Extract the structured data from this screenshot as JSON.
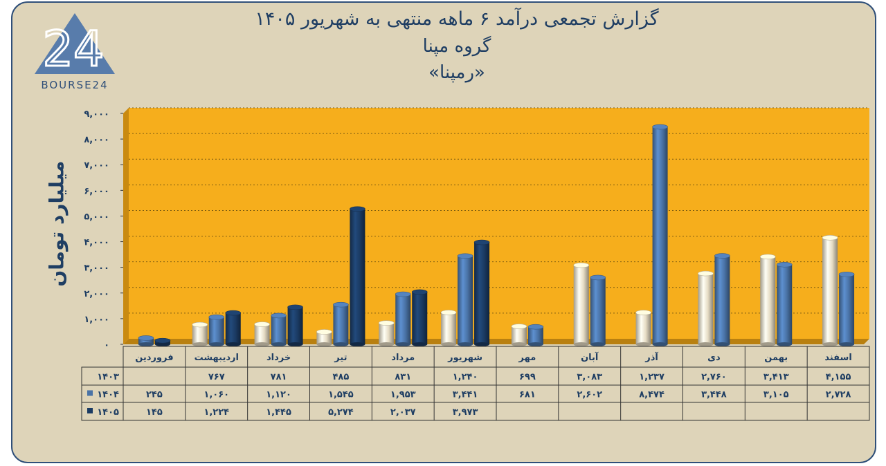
{
  "title_line1": "گزارش تجمعی درآمد ۶ ماهه منتهی به شهریور ۱۴۰۵",
  "title_line2": "گروه مپنا",
  "title_line3": "«رمپنا»",
  "logo_text": "BOURSE24",
  "logo_mark": "24",
  "colors": {
    "plot_bg": "#f6ae1c",
    "s1403": "#e6dcc4",
    "s1404": "#4a73a6",
    "s1405": "#1b3b63",
    "frame": "#ded4b9"
  },
  "chart_data": {
    "type": "bar",
    "title": "گزارش تجمعی درآمد ۶ ماهه منتهی به شهریور ۱۴۰۵",
    "ylabel": "میلیارد تومان",
    "ylim": [
      0,
      9000
    ],
    "yticks": [
      "۰",
      "۱,۰۰۰",
      "۲,۰۰۰",
      "۳,۰۰۰",
      "۴,۰۰۰",
      "۵,۰۰۰",
      "۶,۰۰۰",
      "۷,۰۰۰",
      "۸,۰۰۰",
      "۹,۰۰۰"
    ],
    "categories": [
      "فروردین",
      "اردیبهشت",
      "خرداد",
      "تیر",
      "مرداد",
      "شهریور",
      "مهر",
      "آبان",
      "آذر",
      "دی",
      "بهمن",
      "اسفند"
    ],
    "series": [
      {
        "name": "۱۴۰۳",
        "values": [
          null,
          767,
          781,
          485,
          831,
          1240,
          699,
          3083,
          1237,
          2760,
          3413,
          4155
        ],
        "labels": [
          "",
          "۷۶۷",
          "۷۸۱",
          "۴۸۵",
          "۸۳۱",
          "۱,۲۴۰",
          "۶۹۹",
          "۳,۰۸۳",
          "۱,۲۳۷",
          "۲,۷۶۰",
          "۳,۴۱۳",
          "۴,۱۵۵"
        ]
      },
      {
        "name": "۱۴۰۴",
        "values": [
          245,
          1060,
          1120,
          1545,
          1953,
          3441,
          681,
          2602,
          8474,
          3448,
          3105,
          2728
        ],
        "labels": [
          "۲۴۵",
          "۱,۰۶۰",
          "۱,۱۲۰",
          "۱,۵۴۵",
          "۱,۹۵۳",
          "۳,۴۴۱",
          "۶۸۱",
          "۲,۶۰۲",
          "۸,۴۷۴",
          "۳,۴۴۸",
          "۳,۱۰۵",
          "۲,۷۲۸"
        ]
      },
      {
        "name": "۱۴۰۵",
        "values": [
          145,
          1224,
          1445,
          5274,
          2037,
          3973,
          null,
          null,
          null,
          null,
          null,
          null
        ],
        "labels": [
          "۱۴۵",
          "۱,۲۲۴",
          "۱,۴۴۵",
          "۵,۲۷۴",
          "۲,۰۳۷",
          "۳,۹۷۳",
          "",
          "",
          "",
          "",
          "",
          ""
        ]
      }
    ]
  }
}
